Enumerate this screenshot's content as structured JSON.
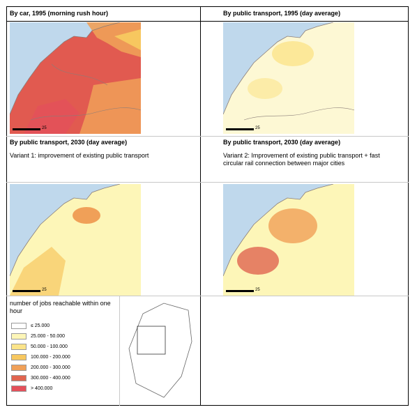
{
  "panels": [
    {
      "title": "By car, 1995 (morning rush hour)",
      "subtitle": "",
      "map_variant": "car-1995",
      "scale_label": "25"
    },
    {
      "title": "By public transport, 1995 (day average)",
      "subtitle": "",
      "map_variant": "pt-1995",
      "scale_label": "25"
    },
    {
      "title": "By public transport, 2030 (day average)",
      "subtitle": "Variant 1: improvement of existing public transport",
      "map_variant": "pt-2030-v1",
      "scale_label": "25"
    },
    {
      "title": "By public transport, 2030 (day average)",
      "subtitle": "Variant 2: Improvement of existing public transport + fast circular rail connection between major cities",
      "map_variant": "pt-2030-v2",
      "scale_label": "25"
    }
  ],
  "legend": {
    "title": "number of jobs reachable within one hour",
    "items": [
      {
        "label": "≤ 25.000",
        "color": "#ffffff"
      },
      {
        "label": "25.000 - 50.000",
        "color": "#fdf6b8"
      },
      {
        "label": "50.000 - 100.000",
        "color": "#fbe48a"
      },
      {
        "label": "100.000 - 200.000",
        "color": "#f7c75f"
      },
      {
        "label": "200.000 - 300.000",
        "color": "#f0a058"
      },
      {
        "label": "300.000 - 400.000",
        "color": "#e06550"
      },
      {
        "label": "> 400.000",
        "color": "#e4505a"
      }
    ]
  },
  "colors": {
    "sea": "#bfd8ec",
    "land_base": "#fdf8d4",
    "border": "#8a7d78"
  }
}
